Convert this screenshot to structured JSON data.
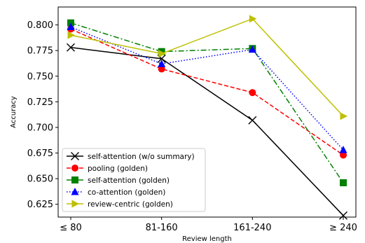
{
  "chart_data": {
    "type": "line",
    "categories": [
      "≤ 80",
      "81-160",
      "161-240",
      "≥ 240"
    ],
    "xlabel": "Review length",
    "ylabel": "Accuracy",
    "ylim": [
      0.6125,
      0.8175
    ],
    "yticks": [
      0.625,
      0.65,
      0.675,
      0.7,
      0.725,
      0.75,
      0.775,
      0.8
    ],
    "ytick_labels": [
      "0.625",
      "0.650",
      "0.675",
      "0.700",
      "0.725",
      "0.750",
      "0.775",
      "0.800"
    ],
    "grid": false,
    "legend_position": "lower-left",
    "series": [
      {
        "name": "self-attention (w/o summary)",
        "values": [
          0.778,
          0.767,
          0.707,
          0.614
        ],
        "color": "#000000",
        "dash": "solid",
        "marker": "x"
      },
      {
        "name": "pooling (golden)",
        "values": [
          0.796,
          0.757,
          0.734,
          0.673
        ],
        "color": "#ff0000",
        "dash": "dashed",
        "marker": "circle"
      },
      {
        "name": "self-attention (golden)",
        "values": [
          0.802,
          0.774,
          0.777,
          0.646
        ],
        "color": "#008000",
        "dash": "dashdot",
        "marker": "square"
      },
      {
        "name": "co-attention (golden)",
        "values": [
          0.798,
          0.762,
          0.776,
          0.678
        ],
        "color": "#0000ff",
        "dash": "dotted",
        "marker": "triangle-up"
      },
      {
        "name": "review-centric (golden)",
        "values": [
          0.79,
          0.772,
          0.806,
          0.711
        ],
        "color": "#bfbf00",
        "dash": "solid",
        "marker": "triangle-right"
      }
    ]
  }
}
